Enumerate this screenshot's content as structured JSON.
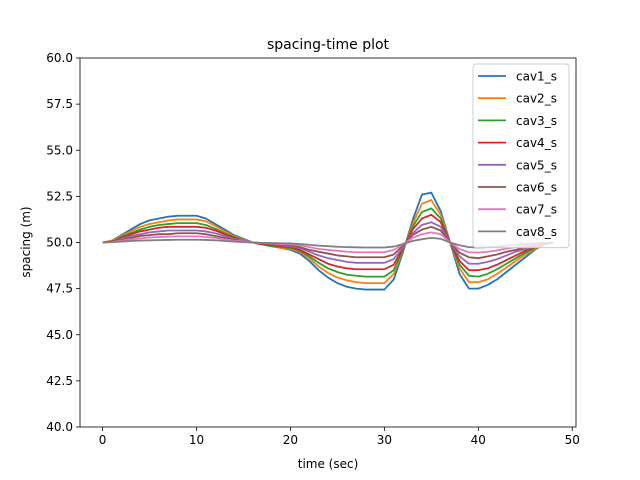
{
  "chart_data": {
    "type": "line",
    "title": "spacing-time plot",
    "xlabel": "time (sec)",
    "ylabel": "spacing (m)",
    "xlim": [
      -2.4,
      50.4
    ],
    "ylim": [
      40.0,
      60.0
    ],
    "xticks": [
      0,
      10,
      20,
      30,
      40,
      50
    ],
    "yticks": [
      40.0,
      42.5,
      45.0,
      47.5,
      50.0,
      52.5,
      55.0,
      57.5,
      60.0
    ],
    "xtick_labels": [
      "0",
      "10",
      "20",
      "30",
      "40",
      "50"
    ],
    "ytick_labels": [
      "40.0",
      "42.5",
      "45.0",
      "47.5",
      "50.0",
      "52.5",
      "55.0",
      "57.5",
      "60.0"
    ],
    "grid": false,
    "legend_position": "top-right",
    "x": [
      0,
      1,
      2,
      3,
      4,
      5,
      6,
      7,
      8,
      9,
      10,
      11,
      12,
      13,
      14,
      15,
      16,
      17,
      18,
      19,
      20,
      21,
      22,
      23,
      24,
      25,
      26,
      27,
      28,
      29,
      30,
      31,
      32,
      33,
      34,
      35,
      36,
      37,
      38,
      39,
      40,
      41,
      42,
      43,
      44,
      45,
      46,
      47,
      48
    ],
    "series": [
      {
        "name": "cav1_s",
        "color": "#1f77b4",
        "values": [
          50.0,
          50.1,
          50.4,
          50.7,
          51.0,
          51.2,
          51.3,
          51.4,
          51.45,
          51.45,
          51.45,
          51.3,
          51.0,
          50.7,
          50.4,
          50.2,
          50.0,
          49.9,
          49.8,
          49.7,
          49.6,
          49.4,
          49.0,
          48.5,
          48.1,
          47.8,
          47.6,
          47.5,
          47.45,
          47.45,
          47.45,
          48.0,
          49.5,
          51.2,
          52.6,
          52.7,
          51.7,
          50.0,
          48.3,
          47.5,
          47.5,
          47.7,
          48.0,
          48.4,
          48.8,
          49.2,
          49.6,
          49.9,
          50.0
        ]
      },
      {
        "name": "cav2_s",
        "color": "#ff7f0e",
        "values": [
          50.0,
          50.1,
          50.35,
          50.6,
          50.85,
          51.0,
          51.1,
          51.2,
          51.25,
          51.25,
          51.25,
          51.15,
          50.9,
          50.6,
          50.35,
          50.15,
          50.0,
          49.9,
          49.8,
          49.7,
          49.65,
          49.5,
          49.15,
          48.7,
          48.35,
          48.1,
          47.95,
          47.85,
          47.8,
          47.8,
          47.8,
          48.3,
          49.6,
          51.0,
          52.1,
          52.3,
          51.5,
          50.0,
          48.6,
          47.85,
          47.85,
          48.0,
          48.3,
          48.65,
          49.0,
          49.35,
          49.65,
          49.9,
          50.0
        ]
      },
      {
        "name": "cav3_s",
        "color": "#2ca02c",
        "values": [
          50.0,
          50.05,
          50.3,
          50.5,
          50.7,
          50.85,
          50.95,
          51.0,
          51.05,
          51.05,
          51.05,
          50.95,
          50.75,
          50.5,
          50.3,
          50.1,
          50.0,
          49.9,
          49.8,
          49.75,
          49.7,
          49.55,
          49.25,
          48.9,
          48.6,
          48.4,
          48.25,
          48.2,
          48.15,
          48.15,
          48.15,
          48.5,
          49.65,
          50.85,
          51.65,
          51.85,
          51.3,
          50.0,
          48.8,
          48.2,
          48.15,
          48.3,
          48.55,
          48.85,
          49.15,
          49.45,
          49.7,
          49.9,
          50.0
        ]
      },
      {
        "name": "cav4_s",
        "color": "#d62728",
        "values": [
          50.0,
          50.05,
          50.25,
          50.45,
          50.6,
          50.7,
          50.8,
          50.85,
          50.85,
          50.85,
          50.85,
          50.8,
          50.65,
          50.45,
          50.25,
          50.1,
          50.0,
          49.9,
          49.85,
          49.8,
          49.75,
          49.6,
          49.35,
          49.1,
          48.85,
          48.7,
          48.6,
          48.55,
          48.55,
          48.55,
          48.55,
          48.8,
          49.7,
          50.7,
          51.3,
          51.5,
          51.1,
          50.0,
          49.0,
          48.5,
          48.5,
          48.6,
          48.8,
          49.05,
          49.3,
          49.55,
          49.75,
          49.9,
          50.0
        ]
      },
      {
        "name": "cav5_s",
        "color": "#9467bd",
        "values": [
          50.0,
          50.05,
          50.2,
          50.35,
          50.45,
          50.55,
          50.6,
          50.65,
          50.65,
          50.65,
          50.65,
          50.6,
          50.5,
          50.35,
          50.2,
          50.1,
          50.0,
          49.95,
          49.9,
          49.85,
          49.8,
          49.7,
          49.5,
          49.3,
          49.15,
          49.05,
          48.95,
          48.9,
          48.9,
          48.9,
          48.9,
          49.1,
          49.75,
          50.5,
          50.95,
          51.1,
          50.85,
          50.0,
          49.25,
          48.85,
          48.85,
          48.95,
          49.1,
          49.3,
          49.5,
          49.65,
          49.8,
          49.95,
          50.0
        ]
      },
      {
        "name": "cav6_s",
        "color": "#8c564b",
        "values": [
          50.0,
          50.05,
          50.15,
          50.25,
          50.35,
          50.4,
          50.45,
          50.45,
          50.5,
          50.5,
          50.5,
          50.45,
          50.35,
          50.25,
          50.15,
          50.05,
          50.0,
          49.95,
          49.9,
          49.9,
          49.85,
          49.75,
          49.6,
          49.5,
          49.4,
          49.3,
          49.25,
          49.2,
          49.2,
          49.2,
          49.2,
          49.35,
          49.85,
          50.4,
          50.7,
          50.85,
          50.65,
          50.0,
          49.45,
          49.2,
          49.15,
          49.25,
          49.35,
          49.5,
          49.6,
          49.75,
          49.85,
          49.95,
          50.0
        ]
      },
      {
        "name": "cav7_s",
        "color": "#e377c2",
        "values": [
          50.0,
          50.02,
          50.1,
          50.17,
          50.22,
          50.27,
          50.3,
          50.32,
          50.33,
          50.33,
          50.33,
          50.3,
          50.25,
          50.17,
          50.1,
          50.05,
          50.0,
          49.97,
          49.95,
          49.92,
          49.9,
          49.85,
          49.75,
          49.65,
          49.6,
          49.55,
          49.5,
          49.47,
          49.47,
          49.47,
          49.47,
          49.6,
          49.9,
          50.25,
          50.45,
          50.55,
          50.45,
          50.0,
          49.65,
          49.47,
          49.45,
          49.5,
          49.57,
          49.67,
          49.75,
          49.82,
          49.9,
          49.97,
          50.0
        ]
      },
      {
        "name": "cav8_s",
        "color": "#7f7f7f",
        "values": [
          50.0,
          50.02,
          50.05,
          50.08,
          50.1,
          50.12,
          50.13,
          50.14,
          50.15,
          50.15,
          50.15,
          50.14,
          50.12,
          50.08,
          50.05,
          50.02,
          50.0,
          49.98,
          49.97,
          49.96,
          49.95,
          49.92,
          49.88,
          49.83,
          49.8,
          49.77,
          49.75,
          49.74,
          49.73,
          49.73,
          49.73,
          49.78,
          49.92,
          50.08,
          50.18,
          50.25,
          50.2,
          50.0,
          49.85,
          49.75,
          49.73,
          49.75,
          49.78,
          49.83,
          49.88,
          49.92,
          49.95,
          49.98,
          50.0
        ]
      }
    ]
  }
}
